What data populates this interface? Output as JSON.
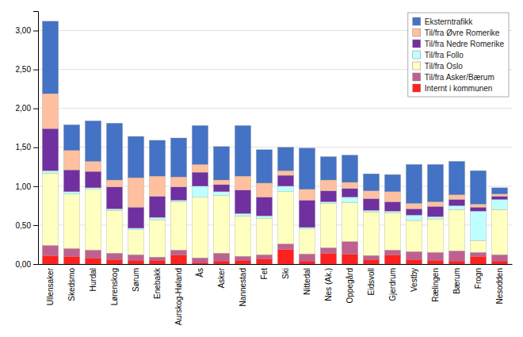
{
  "chart_data": {
    "type": "bar",
    "stacked": true,
    "categories": [
      "Ullensaker",
      "Skedsmo",
      "Hurdal",
      "Lørenskog",
      "Sørum",
      "Enebakk",
      "Aurskog-Høland",
      "Ås",
      "Asker",
      "Nannestad",
      "Fet",
      "Ski",
      "Nittedal",
      "Nes (Ak.)",
      "Oppegård",
      "Eidsvoll",
      "Gjerdrum",
      "Vestby",
      "Rælingen",
      "Bærum",
      "Frogn",
      "Nesodden"
    ],
    "series": [
      {
        "name": "Internt i kommunen",
        "color": "#FF2020",
        "values": [
          0.11,
          0.1,
          0.08,
          0.06,
          0.05,
          0.05,
          0.12,
          0.02,
          0.04,
          0.05,
          0.07,
          0.19,
          0.04,
          0.14,
          0.13,
          0.06,
          0.12,
          0.06,
          0.05,
          0.04,
          0.1,
          0.04
        ]
      },
      {
        "name": "Til/fra Asker/Bærum",
        "color": "#C06090",
        "values": [
          0.13,
          0.1,
          0.1,
          0.08,
          0.07,
          0.04,
          0.06,
          0.06,
          0.1,
          0.05,
          0.05,
          0.07,
          0.09,
          0.07,
          0.16,
          0.05,
          0.06,
          0.1,
          0.1,
          0.13,
          0.05,
          0.08
        ]
      },
      {
        "name": "Til/fra Oslo",
        "color": "#FFFFC0",
        "values": [
          0.93,
          0.7,
          0.78,
          0.55,
          0.32,
          0.48,
          0.62,
          0.78,
          0.74,
          0.52,
          0.47,
          0.67,
          0.32,
          0.57,
          0.5,
          0.56,
          0.48,
          0.4,
          0.43,
          0.53,
          0.15,
          0.58
        ]
      },
      {
        "name": "Til/fra Follo",
        "color": "#BFFFFF",
        "values": [
          0.03,
          0.03,
          0.02,
          0.02,
          0.02,
          0.03,
          0.02,
          0.14,
          0.05,
          0.03,
          0.03,
          0.07,
          0.02,
          0.02,
          0.07,
          0.02,
          0.02,
          0.07,
          0.03,
          0.05,
          0.38,
          0.13
        ]
      },
      {
        "name": "Til/fra Nedre Romerike",
        "color": "#7030A0",
        "values": [
          0.54,
          0.28,
          0.21,
          0.28,
          0.27,
          0.27,
          0.17,
          0.18,
          0.09,
          0.3,
          0.24,
          0.14,
          0.35,
          0.14,
          0.11,
          0.15,
          0.12,
          0.08,
          0.13,
          0.08,
          0.05,
          0.04
        ]
      },
      {
        "name": "Til/fra Øvre Romerike",
        "color": "#FFC0A0",
        "values": [
          0.45,
          0.25,
          0.13,
          0.09,
          0.38,
          0.26,
          0.13,
          0.1,
          0.06,
          0.18,
          0.18,
          0.06,
          0.14,
          0.14,
          0.08,
          0.1,
          0.13,
          0.07,
          0.06,
          0.06,
          0.04,
          0.03
        ]
      },
      {
        "name": "Eksterntrafikk",
        "color": "#4472C4",
        "values": [
          0.93,
          0.33,
          0.52,
          0.73,
          0.53,
          0.46,
          0.5,
          0.5,
          0.43,
          0.65,
          0.43,
          0.3,
          0.53,
          0.3,
          0.35,
          0.22,
          0.22,
          0.5,
          0.48,
          0.43,
          0.43,
          0.08
        ]
      }
    ],
    "ylim": [
      0.0,
      3.25
    ],
    "yticks": [
      {
        "value": 0.0,
        "label": "0,00"
      },
      {
        "value": 0.5,
        "label": "0,50"
      },
      {
        "value": 1.0,
        "label": "1,00"
      },
      {
        "value": 1.5,
        "label": "1,50"
      },
      {
        "value": 2.0,
        "label": "2,00"
      },
      {
        "value": 2.5,
        "label": "2,50"
      },
      {
        "value": 3.0,
        "label": "3,00"
      }
    ],
    "grid": true,
    "legend": "upper right"
  }
}
